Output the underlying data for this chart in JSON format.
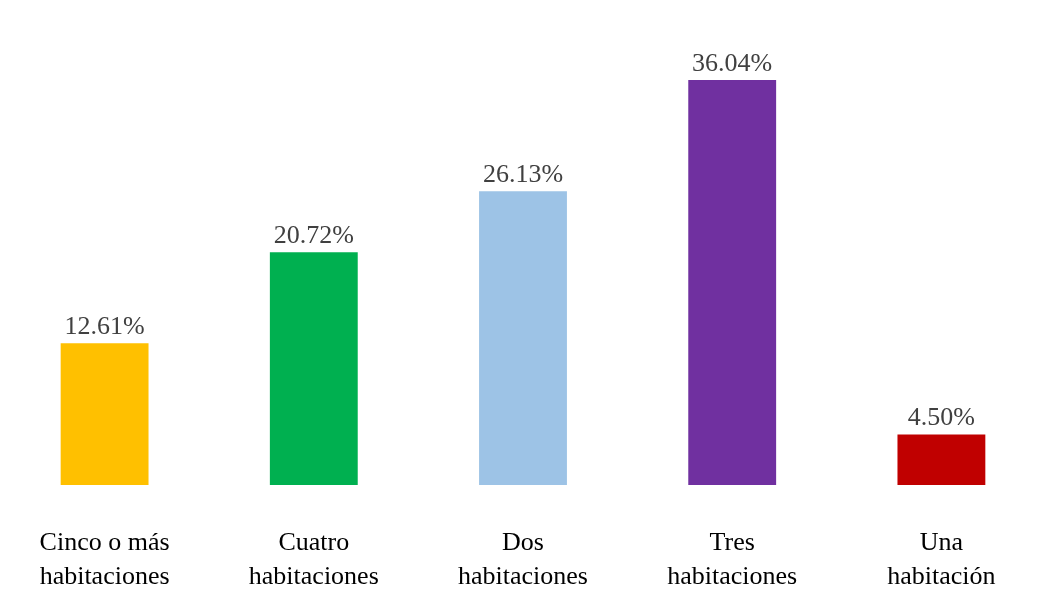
{
  "chart_data": {
    "type": "bar",
    "categories": [
      "Cinco o más habitaciones",
      "Cuatro habitaciones",
      "Dos habitaciones",
      "Tres habitaciones",
      "Una habitación"
    ],
    "values": [
      12.61,
      20.72,
      26.13,
      36.04,
      4.5
    ],
    "value_labels": [
      "12.61%",
      "20.72%",
      "26.13%",
      "36.04%",
      "4.50%"
    ],
    "colors": [
      "#ffc000",
      "#00b050",
      "#9dc3e6",
      "#7030a0",
      "#c00000"
    ],
    "tick_labels": "x"
  }
}
